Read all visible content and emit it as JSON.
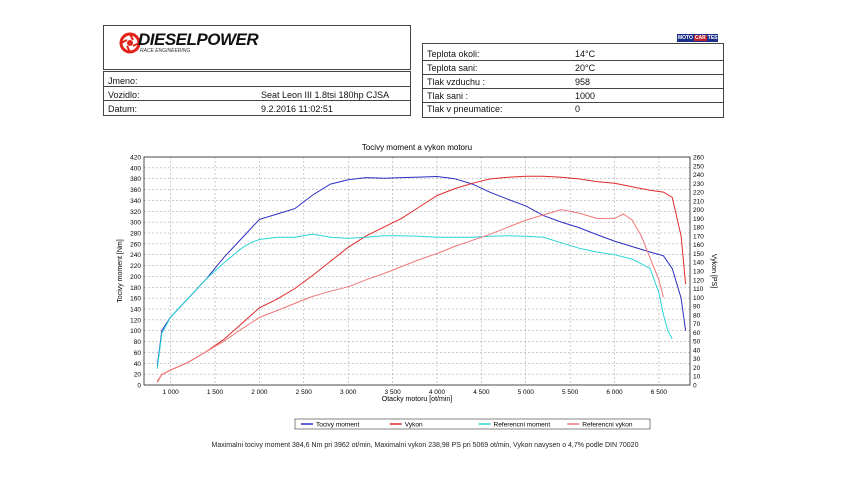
{
  "header": {
    "logo_text": "DIESELPOWER",
    "logo_subtitle": "RACE ENGINEERING",
    "badge": [
      "MOTO",
      "CAR",
      "TEST"
    ],
    "colors": {
      "logo_red": "#e2231a",
      "badge_blue": "#1b2f8a",
      "badge_red": "#c0202a"
    }
  },
  "vehicle": {
    "rows": [
      {
        "label": "Jmeno:",
        "value": ""
      },
      {
        "label": "Vozidlo:",
        "value": "Seat Leon III 1.8tsi 180hp CJSA"
      },
      {
        "label": "Datum:",
        "value": "9.2.2016 11:02:51"
      }
    ]
  },
  "conditions": {
    "rows": [
      {
        "label": "Teplota okoli:",
        "value": "14°C"
      },
      {
        "label": "Teplota sani:",
        "value": "20°C"
      },
      {
        "label": "Tlak vzduchu :",
        "value": "958"
      },
      {
        "label": "Tlak sani :",
        "value": "1000"
      },
      {
        "label": "Tlak v pneumatice:",
        "value": "0"
      }
    ]
  },
  "chart_data": {
    "type": "line",
    "title": "Tocivy moment a vykon motoru",
    "xlabel": "Otacky motoru [ot/min]",
    "ylabel": "Tocivy moment [Nm]",
    "y2label": "Vykon [PS]",
    "xlim": [
      700,
      6850
    ],
    "ylim": [
      0,
      420
    ],
    "y2lim": [
      0,
      260
    ],
    "x_ticks": [
      1000,
      1500,
      2000,
      2500,
      3000,
      3500,
      4000,
      4500,
      5000,
      5500,
      6000,
      6500
    ],
    "x_tick_labels": [
      "1 000",
      "1 500",
      "2 000",
      "2 500",
      "3 000",
      "3 500",
      "4 000",
      "4 500",
      "5 000",
      "5 500",
      "6 000",
      "6 500"
    ],
    "y_ticks": [
      0,
      20,
      40,
      60,
      80,
      100,
      120,
      140,
      160,
      180,
      200,
      220,
      240,
      260,
      280,
      300,
      320,
      340,
      360,
      380,
      400,
      420
    ],
    "y2_ticks": [
      0,
      10,
      20,
      30,
      40,
      50,
      60,
      70,
      80,
      90,
      100,
      110,
      120,
      130,
      140,
      150,
      160,
      170,
      180,
      190,
      200,
      210,
      220,
      230,
      240,
      250,
      260
    ],
    "grid": true,
    "legend_position": "bottom",
    "series": [
      {
        "name": "Tocivy moment",
        "axis": "left",
        "color": "#2a2fc0",
        "x": [
          850,
          900,
          1000,
          1200,
          1400,
          1600,
          1800,
          2000,
          2200,
          2400,
          2600,
          2800,
          3000,
          3200,
          3400,
          3600,
          3800,
          4000,
          4200,
          4400,
          4600,
          4800,
          5000,
          5200,
          5400,
          5600,
          5800,
          6000,
          6200,
          6400,
          6550,
          6650,
          6750,
          6800
        ],
        "y": [
          35,
          100,
          125,
          160,
          195,
          235,
          270,
          305,
          315,
          325,
          350,
          370,
          378,
          382,
          381,
          382,
          383,
          384,
          380,
          370,
          355,
          342,
          330,
          312,
          300,
          290,
          277,
          265,
          255,
          245,
          238,
          215,
          160,
          100
        ]
      },
      {
        "name": "Vykon",
        "axis": "right",
        "color": "#e02b2b",
        "x": [
          850,
          900,
          1000,
          1200,
          1400,
          1600,
          1800,
          2000,
          2200,
          2400,
          2600,
          2800,
          3000,
          3200,
          3400,
          3600,
          3800,
          4000,
          4200,
          4400,
          4600,
          4800,
          5000,
          5200,
          5400,
          5600,
          5800,
          6000,
          6200,
          6400,
          6550,
          6650,
          6750,
          6800
        ],
        "y": [
          4,
          12,
          17,
          26,
          38,
          52,
          70,
          88,
          98,
          110,
          125,
          141,
          157,
          170,
          180,
          190,
          203,
          216,
          224,
          230,
          235,
          237,
          238,
          238,
          237,
          235,
          232,
          230,
          226,
          222,
          220,
          214,
          170,
          115
        ]
      },
      {
        "name": "Referencni moment",
        "axis": "left",
        "color": "#2ad4d4",
        "x": [
          850,
          900,
          1000,
          1200,
          1400,
          1600,
          1800,
          1900,
          2000,
          2200,
          2400,
          2600,
          2800,
          3000,
          3200,
          3400,
          3600,
          3800,
          4000,
          4200,
          4400,
          4600,
          4800,
          5000,
          5200,
          5400,
          5600,
          5800,
          6000,
          6200,
          6400,
          6500,
          6550,
          6600,
          6650
        ],
        "y": [
          30,
          95,
          125,
          160,
          195,
          225,
          252,
          262,
          268,
          272,
          272,
          278,
          272,
          270,
          272,
          275,
          275,
          274,
          272,
          272,
          272,
          274,
          275,
          274,
          272,
          262,
          252,
          245,
          240,
          232,
          215,
          170,
          130,
          100,
          85
        ]
      },
      {
        "name": "Referencni vykon",
        "axis": "right",
        "color": "#f07878",
        "x": [
          850,
          900,
          1000,
          1200,
          1400,
          1600,
          1800,
          2000,
          2200,
          2400,
          2600,
          2800,
          3000,
          3200,
          3400,
          3600,
          3800,
          4000,
          4200,
          4400,
          4600,
          4800,
          5000,
          5200,
          5400,
          5600,
          5800,
          6000,
          6100,
          6200,
          6300,
          6400,
          6500,
          6550
        ],
        "y": [
          3,
          12,
          17,
          26,
          38,
          50,
          64,
          77,
          85,
          93,
          101,
          107,
          112,
          120,
          127,
          135,
          143,
          150,
          158,
          165,
          172,
          180,
          188,
          194,
          200,
          196,
          190,
          190,
          195,
          188,
          170,
          145,
          120,
          100
        ]
      }
    ]
  },
  "footer": {
    "note": "Maximalni tocivy moment 384,6 Nm pri 3962 ot/min,  Maximalni vykon 238,98 PS pri 5069 ot/min,  Vykon navysen o 4,7% podle DIN 70020"
  }
}
